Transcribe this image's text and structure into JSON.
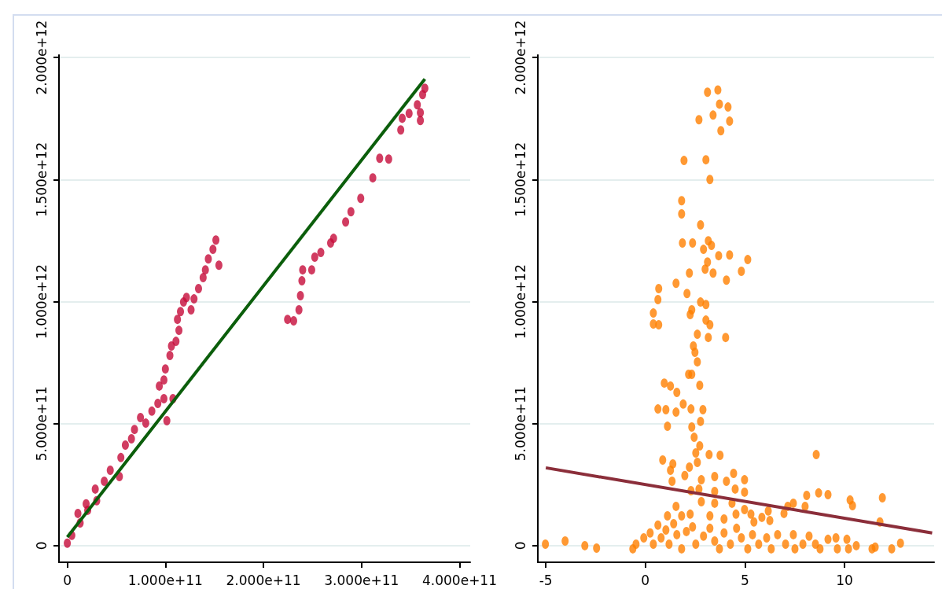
{
  "chart_data": [
    {
      "type": "scatter",
      "grid": "y",
      "xlim": [
        -8500000000.0,
        410800000000.0
      ],
      "ylim": [
        -68000000000.0,
        2010000000000.0
      ],
      "xticks": [
        0,
        {
          "value": 100000000000.0,
          "label": "1.000e+11"
        },
        {
          "value": 200000000000.0,
          "label": "2.000e+11"
        },
        {
          "value": 300000000000.0,
          "label": "3.000e+11"
        },
        {
          "value": 400000000000.0,
          "label": "4.000e+11"
        }
      ],
      "yticks": [
        0,
        {
          "value": 500000000000.0,
          "label": "5.000e+11"
        },
        {
          "value": 1000000000000.0,
          "label": "1.000e+12"
        },
        {
          "value": 1500000000000.0,
          "label": "1.500e+12"
        },
        {
          "value": 2000000000000.0,
          "label": "2.000e+12"
        }
      ],
      "series": [
        {
          "marker": "circle",
          "color": "#c60b3a",
          "x": [
            0,
            4600000000.0,
            10800000000.0,
            13100000000.0,
            19200000000.0,
            20800000000.0,
            28500000000.0,
            30000000000.0,
            37700000000.0,
            43800000000.0,
            53100000000.0,
            54600000000.0,
            59200000000.0,
            65400000000.0,
            68500000000.0,
            74600000000.0,
            80000000000.0,
            86200000000.0,
            92300000000.0,
            98500000000.0,
            101500000000.0,
            107700000000.0,
            93800000000.0,
            98500000000.0,
            100000000000.0,
            104600000000.0,
            106200000000.0,
            110800000000.0,
            113800000000.0,
            112300000000.0,
            115400000000.0,
            118500000000.0,
            121500000000.0,
            126200000000.0,
            129200000000.0,
            133800000000.0,
            138500000000.0,
            140800000000.0,
            143800000000.0,
            148500000000.0,
            151500000000.0,
            154600000000.0,
            224600000000.0,
            230800000000.0,
            236200000000.0,
            237700000000.0,
            239200000000.0,
            240000000000.0,
            249200000000.0,
            252300000000.0,
            258500000000.0,
            268500000000.0,
            271500000000.0,
            283800000000.0,
            289200000000.0,
            299200000000.0,
            311500000000.0,
            318500000000.0,
            327700000000.0,
            340000000000.0,
            341500000000.0,
            348500000000.0,
            356900000000.0,
            360000000000.0,
            360000000000.0,
            362300000000.0,
            364600000000.0
          ],
          "values": [
            10000000000.0,
            42000000000.0,
            132000000000.0,
            93000000000.0,
            171000000000.0,
            145000000000.0,
            232000000000.0,
            184000000000.0,
            264000000000.0,
            309000000000.0,
            283000000000.0,
            361000000000.0,
            412000000000.0,
            438000000000.0,
            476000000000.0,
            525000000000.0,
            502000000000.0,
            551000000000.0,
            583000000000.0,
            602000000000.0,
            512000000000.0,
            602000000000.0,
            654000000000.0,
            679000000000.0,
            724000000000.0,
            779000000000.0,
            818000000000.0,
            837000000000.0,
            882000000000.0,
            927000000000.0,
            959000000000.0,
            998000000000.0,
            1017000000000.0,
            966000000000.0,
            1011000000000.0,
            1053000000000.0,
            1098000000000.0,
            1130000000000.0,
            1175000000000.0,
            1214000000000.0,
            1252000000000.0,
            1149000000000.0,
            927000000000.0,
            921000000000.0,
            966000000000.0,
            1024000000000.0,
            1085000000000.0,
            1130000000000.0,
            1130000000000.0,
            1182000000000.0,
            1201000000000.0,
            1240000000000.0,
            1259000000000.0,
            1326000000000.0,
            1368000000000.0,
            1423000000000.0,
            1507000000000.0,
            1587000000000.0,
            1584000000000.0,
            1703000000000.0,
            1751000000000.0,
            1771000000000.0,
            1806000000000.0,
            1742000000000.0,
            1774000000000.0,
            1848000000000.0,
            1874000000000.0
          ]
        },
        {
          "type": "line",
          "marker": "none",
          "color": "#0b5e0b",
          "x": [
            0,
            364600000000.0
          ],
          "values": [
            35000000000.0,
            1912000000000.0
          ]
        }
      ]
    },
    {
      "type": "scatter",
      "grid": "y",
      "xlim": [
        -5.4,
        14.5
      ],
      "ylim": [
        -68000000000.0,
        2010000000000.0
      ],
      "xticks": [
        -5,
        0,
        5,
        10
      ],
      "yticks": [
        0,
        {
          "value": 500000000000.0,
          "label": "5.000e+11"
        },
        {
          "value": 1000000000000.0,
          "label": "1.000e+12"
        },
        {
          "value": 1500000000000.0,
          "label": "1.500e+12"
        },
        {
          "value": 2000000000000.0,
          "label": "2.000e+12"
        }
      ],
      "series": [
        {
          "marker": "circle",
          "color": "#ff8000",
          "x": [
            3.12,
            3.64,
            3.72,
            4.15,
            2.69,
            3.4,
            4.23,
            3.79,
            1.94,
            3.04,
            3.24,
            1.82,
            1.82,
            2.77,
            1.86,
            2.37,
            3.16,
            2.92,
            3.32,
            3.68,
            4.23,
            5.14,
            3.12,
            3.0,
            2.21,
            3.4,
            4.82,
            4.07,
            1.54,
            0.67,
            2.09,
            0.63,
            2.77,
            3.04,
            0.4,
            2.33,
            2.25,
            0.4,
            0.67,
            3.04,
            3.24,
            2.61,
            3.16,
            4.03,
            2.41,
            2.49,
            2.61,
            2.17,
            2.33,
            0.95,
            1.26,
            2.73,
            1.58,
            0.63,
            1.03,
            1.54,
            1.9,
            2.29,
            2.89,
            2.77,
            1.11,
            2.33,
            2.45,
            2.73,
            2.53,
            3.2,
            3.75,
            8.58,
            0.87,
            1.38,
            2.61,
            1.26,
            2.21,
            1.98,
            2.81,
            3.48,
            4.43,
            4.98,
            1.34,
            4.07,
            4.51,
            4.98,
            2.29,
            3.48,
            2.69,
            8.1,
            8.7,
            9.17,
            10.28,
            11.9,
            7.43,
            7.15,
            8.02,
            10.4,
            2.81,
            3.48,
            4.35,
            1.54,
            4.98,
            6.96,
            5.3,
            6.17,
            11.78,
            5.85,
            4.55,
            2.25,
            1.82,
            1.11,
            5.45,
            6.25,
            3.95,
            3.24,
            -5.02,
            -4.03,
            -3.04,
            -2.45,
            -0.63,
            -0.47,
            -0.08,
            0.24,
            0.4,
            0.63,
            0.79,
            1.03,
            1.19,
            1.42,
            1.58,
            1.82,
            2.06,
            2.37,
            2.53,
            2.92,
            3.24,
            3.48,
            3.72,
            3.95,
            4.27,
            4.58,
            4.82,
            5.14,
            5.38,
            5.69,
            6.09,
            6.32,
            6.64,
            7.04,
            7.43,
            7.51,
            7.91,
            8.22,
            8.54,
            8.77,
            9.17,
            9.57,
            9.64,
            10.12,
            10.2,
            10.59,
            11.38,
            11.54,
            12.37,
            12.81
          ],
          "values": [
            1858000000000.0,
            1867000000000.0,
            1809000000000.0,
            1797000000000.0,
            1745000000000.0,
            1764000000000.0,
            1739000000000.0,
            1700000000000.0,
            1578000000000.0,
            1581000000000.0,
            1500000000000.0,
            1413000000000.0,
            1359000000000.0,
            1314000000000.0,
            1240000000000.0,
            1240000000000.0,
            1249000000000.0,
            1214000000000.0,
            1230000000000.0,
            1188000000000.0,
            1191000000000.0,
            1172000000000.0,
            1162000000000.0,
            1133000000000.0,
            1117000000000.0,
            1117000000000.0,
            1124000000000.0,
            1088000000000.0,
            1075000000000.0,
            1053000000000.0,
            1033000000000.0,
            1008000000000.0,
            998000000000.0,
            988000000000.0,
            953000000000.0,
            966000000000.0,
            947000000000.0,
            908000000000.0,
            905000000000.0,
            924000000000.0,
            905000000000.0,
            866000000000.0,
            853000000000.0,
            853000000000.0,
            818000000000.0,
            792000000000.0,
            753000000000.0,
            702000000000.0,
            702000000000.0,
            666000000000.0,
            654000000000.0,
            657000000000.0,
            628000000000.0,
            560000000000.0,
            557000000000.0,
            547000000000.0,
            580000000000.0,
            560000000000.0,
            557000000000.0,
            509000000000.0,
            489000000000.0,
            486000000000.0,
            444000000000.0,
            409000000000.0,
            380000000000.0,
            373000000000.0,
            370000000000.0,
            373000000000.0,
            351000000000.0,
            335000000000.0,
            341000000000.0,
            309000000000.0,
            322000000000.0,
            287000000000.0,
            270000000000.0,
            283000000000.0,
            296000000000.0,
            270000000000.0,
            264000000000.0,
            264000000000.0,
            232000000000.0,
            219000000000.0,
            225000000000.0,
            222000000000.0,
            232000000000.0,
            206000000000.0,
            216000000000.0,
            209000000000.0,
            187000000000.0,
            196000000000.0,
            174000000000.0,
            161000000000.0,
            161000000000.0,
            164000000000.0,
            180000000000.0,
            174000000000.0,
            174000000000.0,
            161000000000.0,
            148000000000.0,
            132000000000.0,
            129000000000.0,
            142000000000.0,
            97000000000.0,
            116000000000.0,
            129000000000.0,
            129000000000.0,
            122000000000.0,
            122000000000.0,
            97000000000.0,
            103000000000.0,
            109000000000.0,
            122000000000.0,
            6000000000.0,
            19000000000.0,
            0,
            -10000000000.0,
            -13000000000.0,
            6000000000.0,
            32000000000.0,
            52000000000.0,
            6000000000.0,
            84000000000.0,
            32000000000.0,
            64000000000.0,
            6000000000.0,
            90000000000.0,
            45000000000.0,
            -13000000000.0,
            58000000000.0,
            77000000000.0,
            6000000000.0,
            39000000000.0,
            71000000000.0,
            19000000000.0,
            -13000000000.0,
            52000000000.0,
            6000000000.0,
            71000000000.0,
            32000000000.0,
            -13000000000.0,
            45000000000.0,
            6000000000.0,
            32000000000.0,
            -13000000000.0,
            45000000000.0,
            6000000000.0,
            45000000000.0,
            -13000000000.0,
            6000000000.0,
            39000000000.0,
            6000000000.0,
            -13000000000.0,
            26000000000.0,
            32000000000.0,
            -13000000000.0,
            26000000000.0,
            -13000000000.0,
            0,
            -13000000000.0,
            -6000000000.0,
            -13000000000.0,
            10000000000.0
          ]
        },
        {
          "type": "line",
          "marker": "none",
          "color": "#8b2e3a",
          "x": [
            -5,
            14.4
          ],
          "values": [
            319000000000.0,
            52000000000.0
          ]
        }
      ]
    }
  ]
}
